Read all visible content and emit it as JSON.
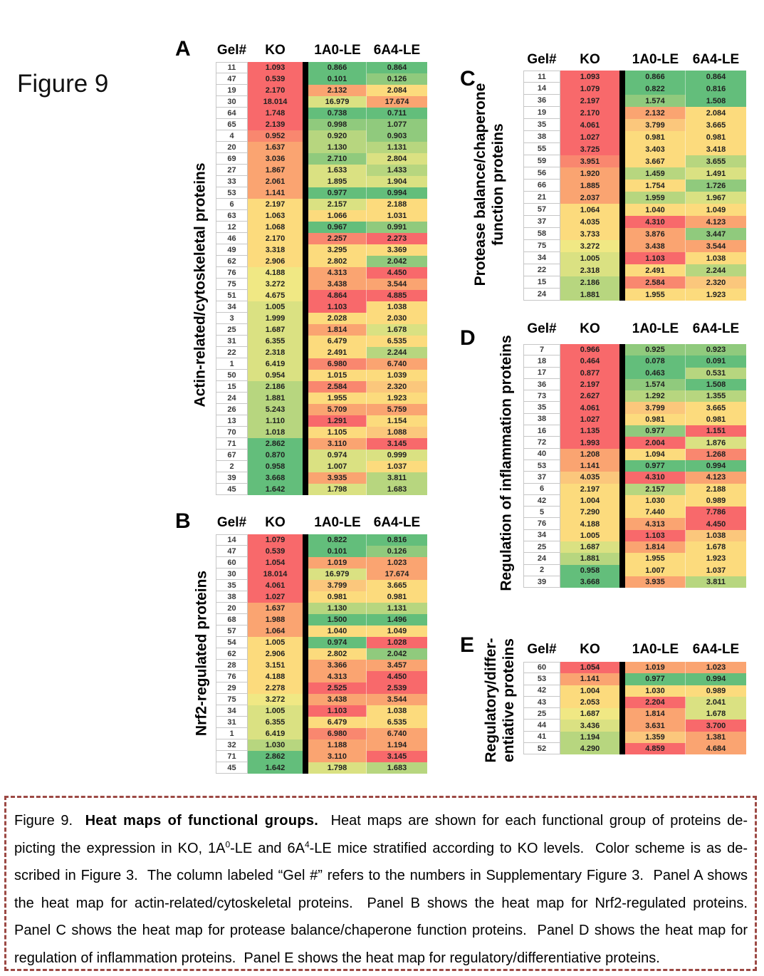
{
  "figure_label": "Figure 9",
  "palette": {
    "r": "#F8696B",
    "ro": "#F9876F",
    "o": "#FAA471",
    "yo": "#FBC77C",
    "y": "#FCDB7D",
    "py": "#F0E884",
    "yg": "#DAE182",
    "lg": "#B7D67F",
    "mg": "#90CA7D",
    "g": "#63BE7B"
  },
  "columns": [
    "Gel#",
    "KO",
    "1A0-LE",
    "6A4-LE"
  ],
  "panels": [
    {
      "id": "A",
      "label_lines": [
        "Actin-related/cytoskeletal proteins"
      ],
      "rows": [
        [
          "11",
          "1.093",
          "r",
          "0.866",
          "g",
          "0.864",
          "g"
        ],
        [
          "47",
          "0.539",
          "r",
          "0.101",
          "g",
          "0.126",
          "mg"
        ],
        [
          "19",
          "2.170",
          "r",
          "2.132",
          "o",
          "2.084",
          "y"
        ],
        [
          "30",
          "18.014",
          "r",
          "16.979",
          "yg",
          "17.674",
          "o"
        ],
        [
          "64",
          "1.748",
          "r",
          "0.738",
          "g",
          "0.711",
          "g"
        ],
        [
          "65",
          "2.139",
          "r",
          "0.998",
          "mg",
          "1.077",
          "mg"
        ],
        [
          "4",
          "0.952",
          "ro",
          "0.920",
          "lg",
          "0.903",
          "mg"
        ],
        [
          "20",
          "1.637",
          "o",
          "1.130",
          "lg",
          "1.131",
          "lg"
        ],
        [
          "69",
          "3.036",
          "o",
          "2.710",
          "mg",
          "2.804",
          "yg"
        ],
        [
          "27",
          "1.867",
          "o",
          "1.633",
          "yg",
          "1.433",
          "lg"
        ],
        [
          "33",
          "2.061",
          "o",
          "1.895",
          "yg",
          "1.904",
          "yg"
        ],
        [
          "53",
          "1.141",
          "o",
          "0.977",
          "g",
          "0.994",
          "g"
        ],
        [
          "6",
          "2.197",
          "y",
          "2.157",
          "yg",
          "2.188",
          "y"
        ],
        [
          "63",
          "1.063",
          "y",
          "1.066",
          "y",
          "1.031",
          "y"
        ],
        [
          "12",
          "1.068",
          "y",
          "0.967",
          "g",
          "0.991",
          "mg"
        ],
        [
          "46",
          "2.170",
          "y",
          "2.257",
          "ro",
          "2.273",
          "r"
        ],
        [
          "49",
          "3.318",
          "y",
          "3.295",
          "y",
          "3.369",
          "y"
        ],
        [
          "62",
          "2.906",
          "y",
          "2.802",
          "y",
          "2.042",
          "mg"
        ],
        [
          "76",
          "4.188",
          "py",
          "4.313",
          "o",
          "4.450",
          "r"
        ],
        [
          "75",
          "3.272",
          "py",
          "3.438",
          "o",
          "3.544",
          "o"
        ],
        [
          "51",
          "4.675",
          "py",
          "4.864",
          "r",
          "4.885",
          "r"
        ],
        [
          "34",
          "1.005",
          "yg",
          "1.103",
          "r",
          "1.038",
          "y"
        ],
        [
          "3",
          "1.999",
          "yg",
          "2.028",
          "y",
          "2.030",
          "y"
        ],
        [
          "25",
          "1.687",
          "yg",
          "1.814",
          "o",
          "1.678",
          "yg"
        ],
        [
          "31",
          "6.355",
          "yg",
          "6.479",
          "y",
          "6.535",
          "y"
        ],
        [
          "22",
          "2.318",
          "yg",
          "2.491",
          "y",
          "2.244",
          "lg"
        ],
        [
          "1",
          "6.419",
          "yg",
          "6.980",
          "ro",
          "6.740",
          "o"
        ],
        [
          "50",
          "0.954",
          "yg",
          "1.015",
          "y",
          "1.039",
          "y"
        ],
        [
          "15",
          "2.186",
          "lg",
          "2.584",
          "ro",
          "2.320",
          "yo"
        ],
        [
          "24",
          "1.881",
          "lg",
          "1.955",
          "y",
          "1.923",
          "y"
        ],
        [
          "26",
          "5.243",
          "lg",
          "5.709",
          "o",
          "5.759",
          "o"
        ],
        [
          "13",
          "1.110",
          "lg",
          "1.291",
          "r",
          "1.154",
          "y"
        ],
        [
          "70",
          "1.018",
          "lg",
          "1.105",
          "y",
          "1.088",
          "yo"
        ],
        [
          "71",
          "2.862",
          "g",
          "3.110",
          "o",
          "3.145",
          "r"
        ],
        [
          "67",
          "0.870",
          "g",
          "0.974",
          "yg",
          "0.999",
          "yg"
        ],
        [
          "2",
          "0.958",
          "g",
          "1.007",
          "yg",
          "1.037",
          "y"
        ],
        [
          "39",
          "3.668",
          "g",
          "3.935",
          "o",
          "3.811",
          "lg"
        ],
        [
          "45",
          "1.642",
          "g",
          "1.798",
          "yg",
          "1.683",
          "lg"
        ]
      ]
    },
    {
      "id": "B",
      "label_lines": [
        "Nrf2-regulated proteins"
      ],
      "rows": [
        [
          "14",
          "1.079",
          "r",
          "0.822",
          "g",
          "0.816",
          "g"
        ],
        [
          "47",
          "0.539",
          "r",
          "0.101",
          "g",
          "0.126",
          "mg"
        ],
        [
          "60",
          "1.054",
          "r",
          "1.019",
          "o",
          "1.023",
          "o"
        ],
        [
          "30",
          "18.014",
          "r",
          "16.979",
          "yg",
          "17.674",
          "o"
        ],
        [
          "35",
          "4.061",
          "r",
          "3.799",
          "yo",
          "3.665",
          "y"
        ],
        [
          "38",
          "1.027",
          "r",
          "0.981",
          "y",
          "0.981",
          "y"
        ],
        [
          "20",
          "1.637",
          "o",
          "1.130",
          "lg",
          "1.131",
          "lg"
        ],
        [
          "68",
          "1.988",
          "o",
          "1.500",
          "g",
          "1.496",
          "g"
        ],
        [
          "57",
          "1.064",
          "o",
          "1.040",
          "y",
          "1.049",
          "y"
        ],
        [
          "54",
          "1.005",
          "y",
          "0.974",
          "g",
          "1.028",
          "r"
        ],
        [
          "62",
          "2.906",
          "y",
          "2.802",
          "y",
          "2.042",
          "mg"
        ],
        [
          "28",
          "3.151",
          "y",
          "3.366",
          "o",
          "3.457",
          "o"
        ],
        [
          "76",
          "4.188",
          "y",
          "4.313",
          "o",
          "4.450",
          "r"
        ],
        [
          "29",
          "2.278",
          "y",
          "2.525",
          "r",
          "2.539",
          "r"
        ],
        [
          "75",
          "3.272",
          "py",
          "3.438",
          "o",
          "3.544",
          "o"
        ],
        [
          "34",
          "1.005",
          "yg",
          "1.103",
          "r",
          "1.038",
          "y"
        ],
        [
          "31",
          "6.355",
          "yg",
          "6.479",
          "y",
          "6.535",
          "y"
        ],
        [
          "1",
          "6.419",
          "yg",
          "6.980",
          "ro",
          "6.740",
          "o"
        ],
        [
          "32",
          "1.030",
          "lg",
          "1.188",
          "o",
          "1.194",
          "o"
        ],
        [
          "71",
          "2.862",
          "g",
          "3.110",
          "o",
          "3.145",
          "r"
        ],
        [
          "45",
          "1.642",
          "g",
          "1.798",
          "yg",
          "1.683",
          "lg"
        ]
      ]
    },
    {
      "id": "C",
      "label_lines": [
        "Protease balance/chaperone",
        "function proteins"
      ],
      "rows": [
        [
          "11",
          "1.093",
          "r",
          "0.866",
          "g",
          "0.864",
          "g"
        ],
        [
          "14",
          "1.079",
          "r",
          "0.822",
          "g",
          "0.816",
          "g"
        ],
        [
          "36",
          "2.197",
          "r",
          "1.574",
          "mg",
          "1.508",
          "g"
        ],
        [
          "19",
          "2.170",
          "r",
          "2.132",
          "o",
          "2.084",
          "y"
        ],
        [
          "35",
          "4.061",
          "r",
          "3.799",
          "yo",
          "3.665",
          "y"
        ],
        [
          "38",
          "1.027",
          "r",
          "0.981",
          "y",
          "0.981",
          "y"
        ],
        [
          "55",
          "3.725",
          "r",
          "3.403",
          "y",
          "3.418",
          "y"
        ],
        [
          "59",
          "3.951",
          "ro",
          "3.667",
          "y",
          "3.655",
          "lg"
        ],
        [
          "56",
          "1.920",
          "o",
          "1.459",
          "lg",
          "1.491",
          "yg"
        ],
        [
          "66",
          "1.885",
          "o",
          "1.754",
          "y",
          "1.726",
          "mg"
        ],
        [
          "21",
          "2.037",
          "o",
          "1.959",
          "lg",
          "1.967",
          "yg"
        ],
        [
          "57",
          "1.064",
          "y",
          "1.040",
          "y",
          "1.049",
          "y"
        ],
        [
          "37",
          "4.035",
          "y",
          "4.310",
          "r",
          "4.123",
          "o"
        ],
        [
          "58",
          "3.733",
          "y",
          "3.876",
          "o",
          "3.447",
          "mg"
        ],
        [
          "75",
          "3.272",
          "py",
          "3.438",
          "o",
          "3.544",
          "o"
        ],
        [
          "34",
          "1.005",
          "yg",
          "1.103",
          "r",
          "1.038",
          "y"
        ],
        [
          "22",
          "2.318",
          "yg",
          "2.491",
          "y",
          "2.244",
          "lg"
        ],
        [
          "15",
          "2.186",
          "lg",
          "2.584",
          "ro",
          "2.320",
          "yo"
        ],
        [
          "24",
          "1.881",
          "lg",
          "1.955",
          "y",
          "1.923",
          "y"
        ]
      ]
    },
    {
      "id": "D",
      "label_lines": [
        "Regulation of inflammation proteins"
      ],
      "rows": [
        [
          "7",
          "0.966",
          "r",
          "0.925",
          "mg",
          "0.923",
          "mg"
        ],
        [
          "18",
          "0.464",
          "r",
          "0.078",
          "g",
          "0.091",
          "g"
        ],
        [
          "17",
          "0.877",
          "r",
          "0.463",
          "g",
          "0.531",
          "lg"
        ],
        [
          "36",
          "2.197",
          "r",
          "1.574",
          "mg",
          "1.508",
          "g"
        ],
        [
          "73",
          "2.627",
          "r",
          "1.292",
          "lg",
          "1.355",
          "lg"
        ],
        [
          "35",
          "4.061",
          "r",
          "3.799",
          "yo",
          "3.665",
          "y"
        ],
        [
          "38",
          "1.027",
          "r",
          "0.981",
          "y",
          "0.981",
          "y"
        ],
        [
          "16",
          "1.135",
          "r",
          "0.977",
          "mg",
          "1.151",
          "r"
        ],
        [
          "72",
          "1.993",
          "r",
          "2.004",
          "r",
          "1.876",
          "yg"
        ],
        [
          "40",
          "1.208",
          "o",
          "1.094",
          "y",
          "1.268",
          "ro"
        ],
        [
          "53",
          "1.141",
          "o",
          "0.977",
          "g",
          "0.994",
          "g"
        ],
        [
          "37",
          "4.035",
          "yo",
          "4.310",
          "r",
          "4.123",
          "o"
        ],
        [
          "6",
          "2.197",
          "y",
          "2.157",
          "lg",
          "2.188",
          "y"
        ],
        [
          "42",
          "1.004",
          "y",
          "1.030",
          "y",
          "0.989",
          "y"
        ],
        [
          "5",
          "7.290",
          "y",
          "7.440",
          "y",
          "7.786",
          "r"
        ],
        [
          "76",
          "4.188",
          "y",
          "4.313",
          "o",
          "4.450",
          "r"
        ],
        [
          "34",
          "1.005",
          "y",
          "1.103",
          "r",
          "1.038",
          "yo"
        ],
        [
          "25",
          "1.687",
          "yg",
          "1.814",
          "o",
          "1.678",
          "y"
        ],
        [
          "24",
          "1.881",
          "lg",
          "1.955",
          "y",
          "1.923",
          "y"
        ],
        [
          "2",
          "0.958",
          "g",
          "1.007",
          "y",
          "1.037",
          "y"
        ],
        [
          "39",
          "3.668",
          "g",
          "3.935",
          "o",
          "3.811",
          "lg"
        ]
      ]
    },
    {
      "id": "E",
      "label_lines": [
        "Regulatory/differ-",
        "entiative proteins"
      ],
      "rows": [
        [
          "60",
          "1.054",
          "r",
          "1.019",
          "o",
          "1.023",
          "o"
        ],
        [
          "53",
          "1.141",
          "o",
          "0.977",
          "g",
          "0.994",
          "g"
        ],
        [
          "42",
          "1.004",
          "y",
          "1.030",
          "y",
          "0.989",
          "y"
        ],
        [
          "43",
          "2.053",
          "y",
          "2.204",
          "r",
          "2.041",
          "yg"
        ],
        [
          "25",
          "1.687",
          "py",
          "1.814",
          "o",
          "1.678",
          "yg"
        ],
        [
          "44",
          "3.436",
          "yg",
          "3.631",
          "o",
          "3.700",
          "r"
        ],
        [
          "41",
          "1.194",
          "lg",
          "1.359",
          "yo",
          "1.381",
          "o"
        ],
        [
          "52",
          "4.290",
          "lg",
          "4.859",
          "r",
          "4.684",
          "o"
        ]
      ]
    }
  ],
  "caption": {
    "lines": [
      [
        {
          "t": "Figure 9.  "
        },
        {
          "t": "Heat maps of functional groups.",
          "b": true
        },
        {
          "t": "  Heat maps are shown for each functional group of proteins de-"
        }
      ],
      [
        {
          "t": "picting the expression in KO, 1A"
        },
        {
          "t": "0",
          "sup": true
        },
        {
          "t": "-LE and 6A"
        },
        {
          "t": "4",
          "sup": true
        },
        {
          "t": "-LE mice stratified according to KO levels.  Color scheme is as de-"
        }
      ],
      [
        {
          "t": "scribed in Figure 3.  The column labeled “Gel #” refers to the numbers in Supplementary Figure 3.  Panel A shows"
        }
      ],
      [
        {
          "t": "the heat map for actin-related/cytoskeletal proteins.  Panel B shows the heat map for Nrf2-regulated proteins."
        }
      ],
      [
        {
          "t": "Panel C shows the heat map for protease balance/chaperone function proteins.  Panel D shows the heat map for"
        }
      ],
      [
        {
          "t": "regulation of inflammation proteins.  Panel E shows the heat map for regulatory/differentiative proteins."
        }
      ]
    ]
  }
}
